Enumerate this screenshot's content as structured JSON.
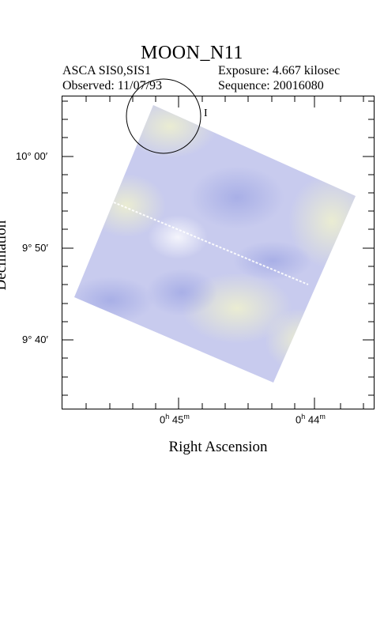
{
  "header": {
    "title": "MOON_N11",
    "instrument": "ASCA SIS0,SIS1",
    "exposure": "Exposure: 4.667 kilosec",
    "observed": "Observed: 11/07/93",
    "sequence": "Sequence: 20016080"
  },
  "axes": {
    "xlabel": "Right Ascension",
    "ylabel": "Declination",
    "x_ticks": [
      {
        "h": "0",
        "m": "45"
      },
      {
        "h": "0",
        "m": "44"
      }
    ],
    "y_ticks": [
      "10° 00′",
      "9° 50′",
      "9° 40′"
    ]
  },
  "marker": {
    "label": "I"
  },
  "colors": {
    "frame": "#000000",
    "image_base": "#c8cbee",
    "image_light": "#e6e8d6",
    "image_dark": "#a9b0e6"
  }
}
